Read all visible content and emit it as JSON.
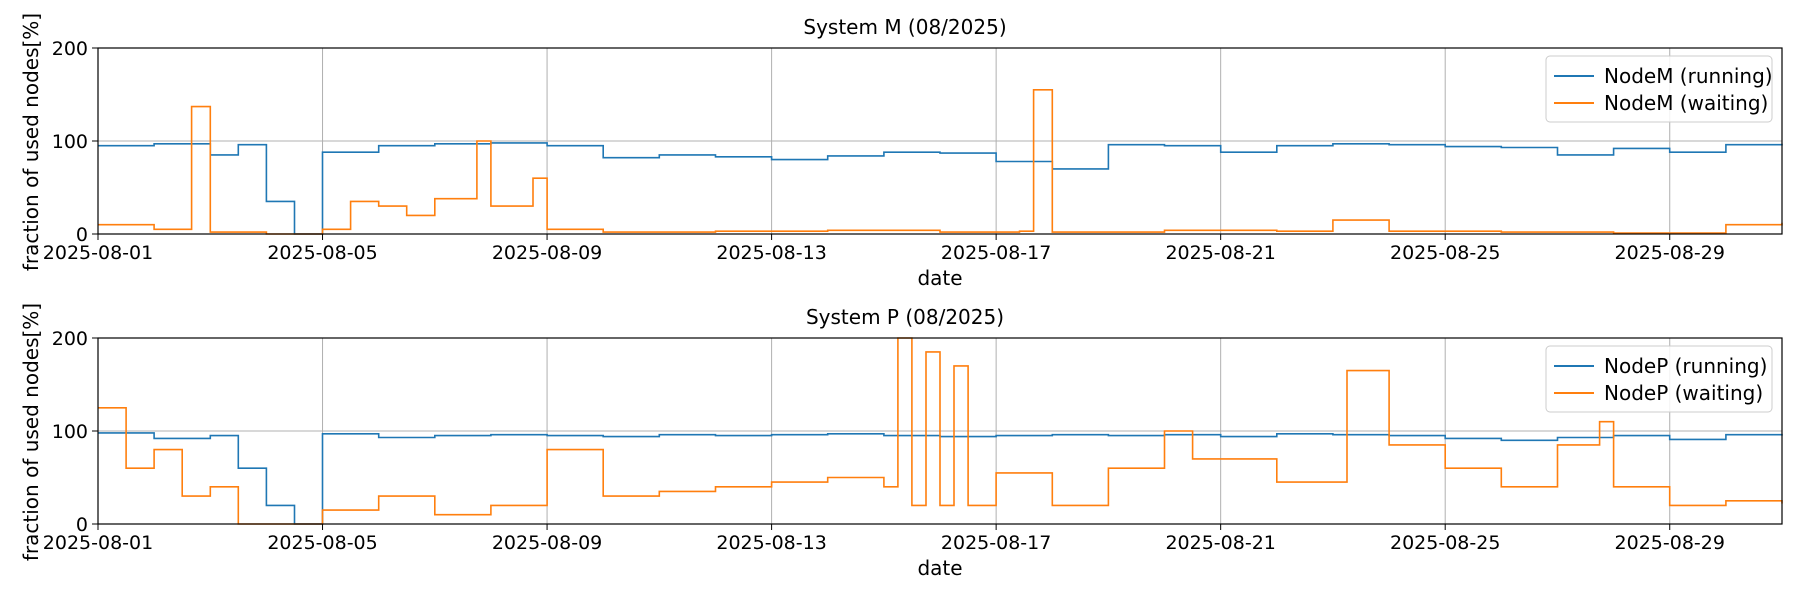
{
  "chart_data": [
    {
      "type": "line",
      "title": "System M (08/2025)",
      "xlabel": "date",
      "ylabel": "fraction of used nodes[%]",
      "xlim": [
        "2025-08-01",
        "2025-08-31"
      ],
      "ylim": [
        0,
        200
      ],
      "yticks": [
        "0",
        "100",
        "200"
      ],
      "xticks": [
        "2025-08-01",
        "2025-08-05",
        "2025-08-09",
        "2025-08-13",
        "2025-08-17",
        "2025-08-21",
        "2025-08-25",
        "2025-08-29"
      ],
      "grid": true,
      "legend": "top-right",
      "series": [
        {
          "name": "NodeM (running)",
          "color": "#1f77b4",
          "x": [
            "2025-08-01",
            "2025-08-02",
            "2025-08-03",
            "2025-08-03 12:00",
            "2025-08-04",
            "2025-08-04 12:00",
            "2025-08-05",
            "2025-08-06",
            "2025-08-07",
            "2025-08-08",
            "2025-08-09",
            "2025-08-10",
            "2025-08-11",
            "2025-08-12",
            "2025-08-13",
            "2025-08-14",
            "2025-08-15",
            "2025-08-16",
            "2025-08-17",
            "2025-08-18",
            "2025-08-19",
            "2025-08-20",
            "2025-08-21",
            "2025-08-22",
            "2025-08-23",
            "2025-08-24",
            "2025-08-25",
            "2025-08-26",
            "2025-08-27",
            "2025-08-28",
            "2025-08-29",
            "2025-08-30",
            "2025-08-31"
          ],
          "y": [
            95,
            97,
            85,
            96,
            35,
            0,
            88,
            95,
            97,
            98,
            95,
            82,
            85,
            83,
            80,
            84,
            88,
            87,
            78,
            70,
            96,
            95,
            88,
            95,
            97,
            96,
            94,
            93,
            85,
            92,
            88,
            96,
            97
          ]
        },
        {
          "name": "NodeM (waiting)",
          "color": "#ff7f0e",
          "x": [
            "2025-08-01",
            "2025-08-02",
            "2025-08-02 16:00",
            "2025-08-03",
            "2025-08-04",
            "2025-08-05",
            "2025-08-05 12:00",
            "2025-08-06",
            "2025-08-06 12:00",
            "2025-08-07",
            "2025-08-07 18:00",
            "2025-08-08",
            "2025-08-08 18:00",
            "2025-08-09",
            "2025-08-10",
            "2025-08-12",
            "2025-08-14",
            "2025-08-16",
            "2025-08-17 10:00",
            "2025-08-17 16:00",
            "2025-08-18",
            "2025-08-20",
            "2025-08-22",
            "2025-08-23",
            "2025-08-24",
            "2025-08-26",
            "2025-08-28",
            "2025-08-30",
            "2025-08-31"
          ],
          "y": [
            10,
            5,
            137,
            2,
            0,
            5,
            35,
            30,
            20,
            38,
            100,
            30,
            60,
            5,
            2,
            3,
            4,
            2,
            3,
            155,
            2,
            4,
            3,
            15,
            3,
            2,
            1,
            10,
            12
          ]
        }
      ]
    },
    {
      "type": "line",
      "title": "System P (08/2025)",
      "xlabel": "date",
      "ylabel": "fraction of used nodes[%]",
      "xlim": [
        "2025-08-01",
        "2025-08-31"
      ],
      "ylim": [
        0,
        200
      ],
      "yticks": [
        "0",
        "100",
        "200"
      ],
      "xticks": [
        "2025-08-01",
        "2025-08-05",
        "2025-08-09",
        "2025-08-13",
        "2025-08-17",
        "2025-08-21",
        "2025-08-25",
        "2025-08-29"
      ],
      "grid": true,
      "legend": "top-right",
      "series": [
        {
          "name": "NodeP (running)",
          "color": "#1f77b4",
          "x": [
            "2025-08-01",
            "2025-08-02",
            "2025-08-03",
            "2025-08-03 12:00",
            "2025-08-04",
            "2025-08-04 12:00",
            "2025-08-05",
            "2025-08-06",
            "2025-08-07",
            "2025-08-08",
            "2025-08-09",
            "2025-08-10",
            "2025-08-11",
            "2025-08-12",
            "2025-08-13",
            "2025-08-14",
            "2025-08-15",
            "2025-08-16",
            "2025-08-17",
            "2025-08-18",
            "2025-08-19",
            "2025-08-20",
            "2025-08-21",
            "2025-08-22",
            "2025-08-23",
            "2025-08-24",
            "2025-08-25",
            "2025-08-26",
            "2025-08-27",
            "2025-08-28",
            "2025-08-29",
            "2025-08-30",
            "2025-08-31"
          ],
          "y": [
            98,
            92,
            95,
            60,
            20,
            0,
            97,
            93,
            95,
            96,
            95,
            94,
            96,
            95,
            96,
            97,
            95,
            94,
            95,
            96,
            95,
            96,
            94,
            97,
            96,
            95,
            92,
            90,
            93,
            95,
            91,
            96,
            95
          ]
        },
        {
          "name": "NodeP (waiting)",
          "color": "#ff7f0e",
          "x": [
            "2025-08-01",
            "2025-08-01 12:00",
            "2025-08-02",
            "2025-08-02 12:00",
            "2025-08-03",
            "2025-08-03 12:00",
            "2025-08-04",
            "2025-08-05",
            "2025-08-06",
            "2025-08-07",
            "2025-08-08",
            "2025-08-09",
            "2025-08-10",
            "2025-08-11",
            "2025-08-12",
            "2025-08-13",
            "2025-08-14",
            "2025-08-15",
            "2025-08-15 06:00",
            "2025-08-15 12:00",
            "2025-08-15 18:00",
            "2025-08-16",
            "2025-08-16 06:00",
            "2025-08-16 12:00",
            "2025-08-17",
            "2025-08-18",
            "2025-08-19",
            "2025-08-20",
            "2025-08-20 12:00",
            "2025-08-21",
            "2025-08-22",
            "2025-08-23",
            "2025-08-23 06:00",
            "2025-08-24",
            "2025-08-25",
            "2025-08-26",
            "2025-08-27",
            "2025-08-27 18:00",
            "2025-08-28",
            "2025-08-29",
            "2025-08-30",
            "2025-08-31"
          ],
          "y": [
            125,
            60,
            80,
            30,
            40,
            0,
            0,
            15,
            30,
            10,
            20,
            80,
            30,
            35,
            40,
            45,
            50,
            40,
            200,
            20,
            185,
            20,
            170,
            20,
            55,
            20,
            60,
            100,
            70,
            70,
            45,
            45,
            165,
            85,
            60,
            40,
            85,
            110,
            40,
            20,
            25,
            22
          ]
        }
      ]
    }
  ]
}
